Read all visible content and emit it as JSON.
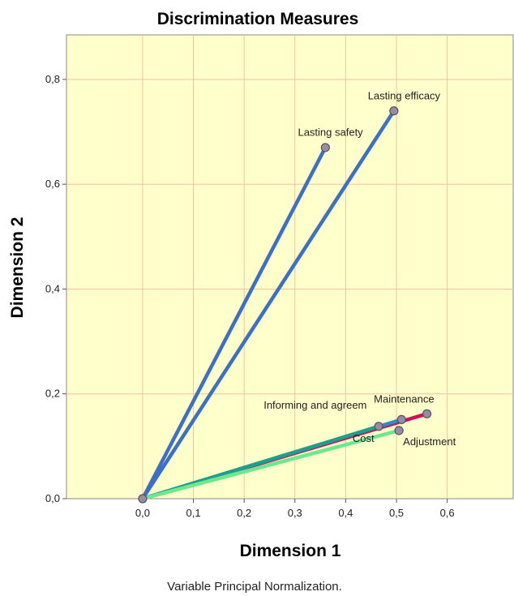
{
  "chart_data": {
    "type": "line",
    "title": "Discrimination Measures",
    "xlabel": "Dimension 1",
    "ylabel": "Dimension 2",
    "footnote": "Variable Principal Normalization.",
    "xlim": [
      -0.15,
      0.73
    ],
    "ylim": [
      0.0,
      0.885
    ],
    "x_ticks": [
      "0,0",
      "0,1",
      "0,2",
      "0,3",
      "0,4",
      "0,5",
      "0,6"
    ],
    "y_ticks": [
      "0,0",
      "0,2",
      "0,4",
      "0,6",
      "0,8"
    ],
    "grid": true,
    "background_color": "#ffffcc",
    "grid_color": "#f2c2a0",
    "series": [
      {
        "name": "Lasting efficacy",
        "x": [
          0.0,
          0.495
        ],
        "y": [
          0.0,
          0.74
        ],
        "color": "#3a6fcc"
      },
      {
        "name": "Lasting safety",
        "x": [
          0.0,
          0.36
        ],
        "y": [
          0.0,
          0.67
        ],
        "color": "#3a6fcc"
      },
      {
        "name": "Maintenance",
        "x": [
          0.0,
          0.56
        ],
        "y": [
          0.0,
          0.162
        ],
        "color": "#d0105a"
      },
      {
        "name": "Informing and agreem",
        "x": [
          0.0,
          0.51
        ],
        "y": [
          0.0,
          0.151
        ],
        "color": "#2e8bc8"
      },
      {
        "name": "Cost",
        "x": [
          0.0,
          0.465
        ],
        "y": [
          0.0,
          0.138
        ],
        "color": "#1f9e8a"
      },
      {
        "name": "Adjustment",
        "x": [
          0.0,
          0.505
        ],
        "y": [
          0.0,
          0.13
        ],
        "color": "#6ee890"
      }
    ],
    "labels": [
      {
        "text": "Lasting efficacy",
        "x": 0.495,
        "y": 0.74,
        "dx": 0.02,
        "dy": 0.022
      },
      {
        "text": "Lasting safety",
        "x": 0.36,
        "y": 0.67,
        "dx": 0.01,
        "dy": 0.022
      },
      {
        "text": "Maintenance",
        "x": 0.56,
        "y": 0.162,
        "dx": -0.045,
        "dy": 0.021
      },
      {
        "text": "Informing and agreem",
        "x": 0.51,
        "y": 0.151,
        "dx": -0.17,
        "dy": 0.021
      },
      {
        "text": "Cost",
        "x": 0.465,
        "y": 0.138,
        "dx": -0.03,
        "dy": -0.03
      },
      {
        "text": "Adjustment",
        "x": 0.505,
        "y": 0.13,
        "dx": 0.06,
        "dy": -0.028
      }
    ]
  }
}
